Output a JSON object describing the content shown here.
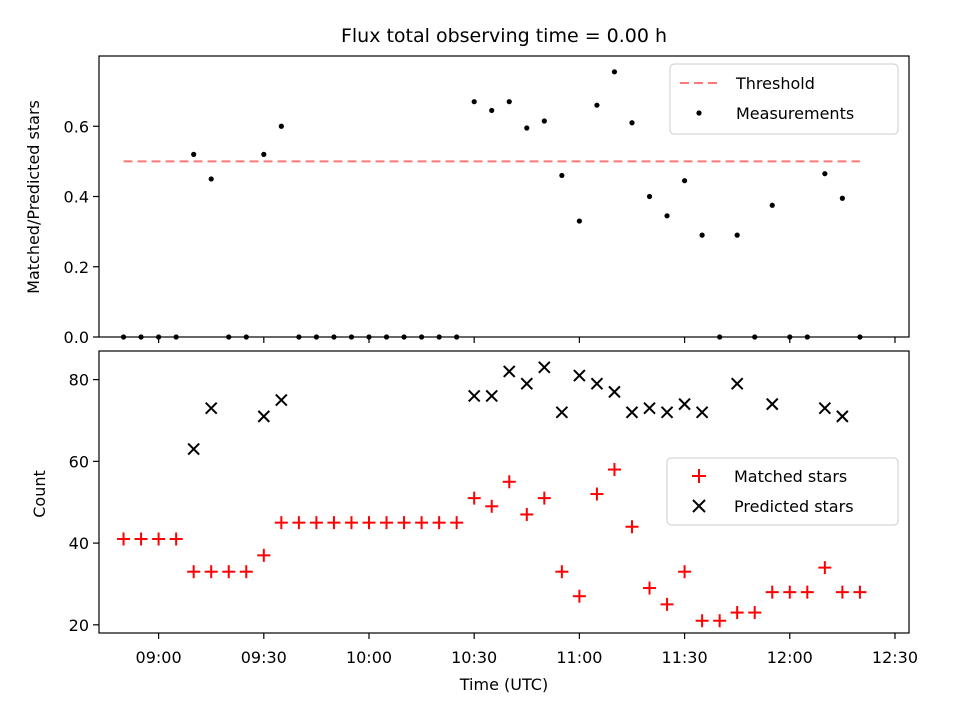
{
  "chart_data": [
    {
      "type": "scatter",
      "title": "Flux total observing time = 0.00 h",
      "xlabel": "",
      "ylabel": "Matched/Predicted stars",
      "x_range": [
        "08:43",
        "12:34"
      ],
      "ylim": [
        0,
        0.8
      ],
      "y_ticks": [
        "0.0",
        "0.2",
        "0.4",
        "0.6"
      ],
      "legend_position": "top-right",
      "threshold": {
        "name": "Threshold",
        "value": 0.5,
        "x_start": "08:50",
        "x_end": "12:20",
        "color": "#ff7777",
        "style": "dashed"
      },
      "series": [
        {
          "name": "Measurements",
          "color": "#000000",
          "marker": "dot",
          "points": [
            {
              "x": "08:50",
              "y": 0
            },
            {
              "x": "08:55",
              "y": 0
            },
            {
              "x": "09:00",
              "y": 0
            },
            {
              "x": "09:05",
              "y": 0
            },
            {
              "x": "09:10",
              "y": 0.52
            },
            {
              "x": "09:15",
              "y": 0.45
            },
            {
              "x": "09:20",
              "y": 0
            },
            {
              "x": "09:25",
              "y": 0
            },
            {
              "x": "09:30",
              "y": 0.52
            },
            {
              "x": "09:35",
              "y": 0.6
            },
            {
              "x": "09:40",
              "y": 0
            },
            {
              "x": "09:45",
              "y": 0
            },
            {
              "x": "09:50",
              "y": 0
            },
            {
              "x": "09:55",
              "y": 0
            },
            {
              "x": "10:00",
              "y": 0
            },
            {
              "x": "10:05",
              "y": 0
            },
            {
              "x": "10:10",
              "y": 0
            },
            {
              "x": "10:15",
              "y": 0
            },
            {
              "x": "10:20",
              "y": 0
            },
            {
              "x": "10:25",
              "y": 0
            },
            {
              "x": "10:30",
              "y": 0.67
            },
            {
              "x": "10:35",
              "y": 0.645
            },
            {
              "x": "10:40",
              "y": 0.67
            },
            {
              "x": "10:45",
              "y": 0.595
            },
            {
              "x": "10:50",
              "y": 0.615
            },
            {
              "x": "10:55",
              "y": 0.46
            },
            {
              "x": "11:00",
              "y": 0.33
            },
            {
              "x": "11:05",
              "y": 0.66
            },
            {
              "x": "11:10",
              "y": 0.755
            },
            {
              "x": "11:15",
              "y": 0.61
            },
            {
              "x": "11:20",
              "y": 0.4
            },
            {
              "x": "11:25",
              "y": 0.345
            },
            {
              "x": "11:30",
              "y": 0.445
            },
            {
              "x": "11:35",
              "y": 0.29
            },
            {
              "x": "11:40",
              "y": 0
            },
            {
              "x": "11:45",
              "y": 0.29
            },
            {
              "x": "11:50",
              "y": 0
            },
            {
              "x": "11:55",
              "y": 0.375
            },
            {
              "x": "12:00",
              "y": 0
            },
            {
              "x": "12:05",
              "y": 0
            },
            {
              "x": "12:10",
              "y": 0.465
            },
            {
              "x": "12:15",
              "y": 0.395
            },
            {
              "x": "12:20",
              "y": 0
            }
          ]
        }
      ]
    },
    {
      "type": "scatter",
      "title": "",
      "xlabel": "Time (UTC)",
      "ylabel": "Count",
      "x_range": [
        "08:43",
        "12:34"
      ],
      "x_ticks": [
        "09:00",
        "09:30",
        "10:00",
        "10:30",
        "11:00",
        "11:30",
        "12:00",
        "12:30"
      ],
      "ylim": [
        18,
        87
      ],
      "y_ticks": [
        "20",
        "40",
        "60",
        "80"
      ],
      "legend_position": "center-right",
      "series": [
        {
          "name": "Matched stars",
          "color": "#ff0000",
          "marker": "plus",
          "points": [
            {
              "x": "08:50",
              "y": 41
            },
            {
              "x": "08:55",
              "y": 41
            },
            {
              "x": "09:00",
              "y": 41
            },
            {
              "x": "09:05",
              "y": 41
            },
            {
              "x": "09:10",
              "y": 33
            },
            {
              "x": "09:15",
              "y": 33
            },
            {
              "x": "09:20",
              "y": 33
            },
            {
              "x": "09:25",
              "y": 33
            },
            {
              "x": "09:30",
              "y": 37
            },
            {
              "x": "09:35",
              "y": 45
            },
            {
              "x": "09:40",
              "y": 45
            },
            {
              "x": "09:45",
              "y": 45
            },
            {
              "x": "09:50",
              "y": 45
            },
            {
              "x": "09:55",
              "y": 45
            },
            {
              "x": "10:00",
              "y": 45
            },
            {
              "x": "10:05",
              "y": 45
            },
            {
              "x": "10:10",
              "y": 45
            },
            {
              "x": "10:15",
              "y": 45
            },
            {
              "x": "10:20",
              "y": 45
            },
            {
              "x": "10:25",
              "y": 45
            },
            {
              "x": "10:30",
              "y": 51
            },
            {
              "x": "10:35",
              "y": 49
            },
            {
              "x": "10:40",
              "y": 55
            },
            {
              "x": "10:45",
              "y": 47
            },
            {
              "x": "10:50",
              "y": 51
            },
            {
              "x": "10:55",
              "y": 33
            },
            {
              "x": "11:00",
              "y": 27
            },
            {
              "x": "11:05",
              "y": 52
            },
            {
              "x": "11:10",
              "y": 58
            },
            {
              "x": "11:15",
              "y": 44
            },
            {
              "x": "11:20",
              "y": 29
            },
            {
              "x": "11:25",
              "y": 25
            },
            {
              "x": "11:30",
              "y": 33
            },
            {
              "x": "11:35",
              "y": 21
            },
            {
              "x": "11:40",
              "y": 21
            },
            {
              "x": "11:45",
              "y": 23
            },
            {
              "x": "11:50",
              "y": 23
            },
            {
              "x": "11:55",
              "y": 28
            },
            {
              "x": "12:00",
              "y": 28
            },
            {
              "x": "12:05",
              "y": 28
            },
            {
              "x": "12:10",
              "y": 34
            },
            {
              "x": "12:15",
              "y": 28
            },
            {
              "x": "12:20",
              "y": 28
            }
          ]
        },
        {
          "name": "Predicted stars",
          "color": "#000000",
          "marker": "x",
          "points": [
            {
              "x": "09:10",
              "y": 63
            },
            {
              "x": "09:15",
              "y": 73
            },
            {
              "x": "09:30",
              "y": 71
            },
            {
              "x": "09:35",
              "y": 75
            },
            {
              "x": "10:30",
              "y": 76
            },
            {
              "x": "10:35",
              "y": 76
            },
            {
              "x": "10:40",
              "y": 82
            },
            {
              "x": "10:45",
              "y": 79
            },
            {
              "x": "10:50",
              "y": 83
            },
            {
              "x": "10:55",
              "y": 72
            },
            {
              "x": "11:00",
              "y": 81
            },
            {
              "x": "11:05",
              "y": 79
            },
            {
              "x": "11:10",
              "y": 77
            },
            {
              "x": "11:15",
              "y": 72
            },
            {
              "x": "11:20",
              "y": 73
            },
            {
              "x": "11:25",
              "y": 72
            },
            {
              "x": "11:30",
              "y": 74
            },
            {
              "x": "11:35",
              "y": 72
            },
            {
              "x": "11:45",
              "y": 79
            },
            {
              "x": "11:55",
              "y": 74
            },
            {
              "x": "12:10",
              "y": 73
            },
            {
              "x": "12:15",
              "y": 71
            }
          ]
        }
      ]
    }
  ]
}
